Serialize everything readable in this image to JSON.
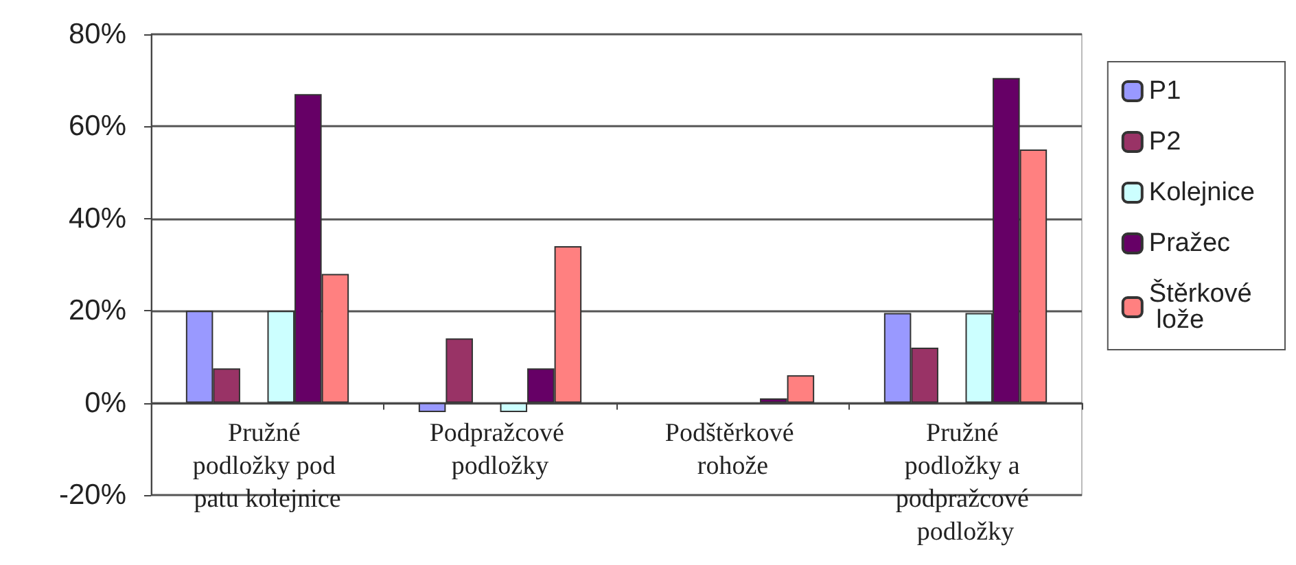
{
  "chart_data": {
    "type": "bar",
    "categories": [
      "Pružné podložky pod patu kolejnice",
      "Podpražcové podložky",
      "Podštěrkové rohože",
      "Pružné podložky a podpražcové podložky"
    ],
    "series": [
      {
        "name": "P1",
        "color": "#9999ff",
        "values": [
          20,
          -2,
          null,
          19.5
        ]
      },
      {
        "name": "P2",
        "color": "#993366",
        "values": [
          7.5,
          14,
          null,
          12
        ]
      },
      {
        "color": "#ffffff",
        "values": [
          null,
          null,
          null,
          null
        ]
      },
      {
        "name": "Kolejnice",
        "color": "#ccffff",
        "values": [
          20,
          -2,
          null,
          19.5
        ]
      },
      {
        "name": "Pražec",
        "color": "#660066",
        "values": [
          67,
          7.5,
          1,
          70.5
        ]
      },
      {
        "name": "Štěrkové lože",
        "color": "#ff8080",
        "values": [
          28,
          34,
          6,
          55
        ]
      }
    ],
    "ylim": [
      -20,
      80
    ],
    "yticks": [
      {
        "value": -20,
        "label": "-20%"
      },
      {
        "value": 0,
        "label": "0%"
      },
      {
        "value": 20,
        "label": "20%"
      },
      {
        "value": 40,
        "label": "40%"
      },
      {
        "value": 60,
        "label": "60%"
      },
      {
        "value": 80,
        "label": "80%"
      }
    ],
    "grid": "y",
    "legend": "right"
  }
}
